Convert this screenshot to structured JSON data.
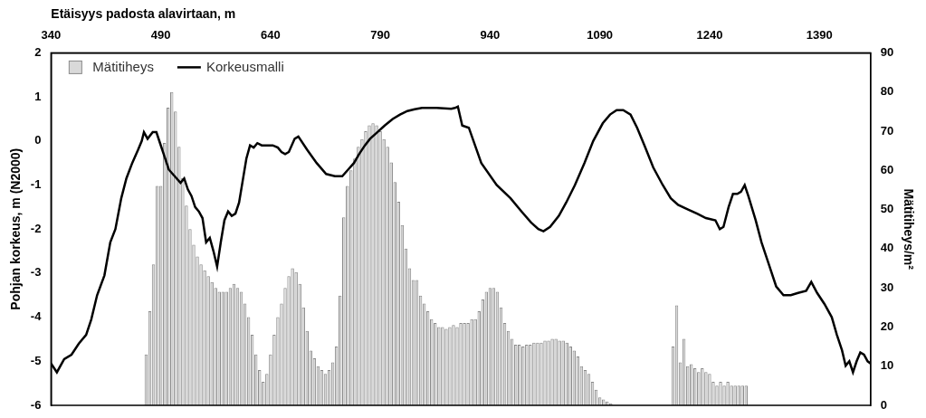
{
  "chart_data": {
    "type": "bar",
    "x_label": "Etäisyys padosta alavirtaan, m",
    "y_label": "Pohjan korkeus, m (N2000)",
    "y2_label": "Mätitiheys/m²",
    "xlim": [
      340,
      1460
    ],
    "xticks": [
      340,
      490,
      640,
      790,
      940,
      1090,
      1240,
      1390
    ],
    "ylim": [
      -6,
      2
    ],
    "yticks": [
      -6,
      -5,
      -4,
      -3,
      -2,
      -1,
      0,
      1,
      2
    ],
    "y2lim": [
      0,
      90
    ],
    "y2ticks": [
      0,
      10,
      20,
      30,
      40,
      50,
      60,
      70,
      80,
      90
    ],
    "grid": false,
    "legend": "upper left",
    "series": [
      {
        "name": "Mätitiheys",
        "type": "bar",
        "axis": "y2",
        "color": "#d9d9d9",
        "x": [
          470,
          475,
          480,
          485,
          490,
          495,
          500,
          505,
          510,
          515,
          520,
          525,
          530,
          535,
          540,
          545,
          550,
          555,
          560,
          565,
          570,
          575,
          580,
          585,
          590,
          595,
          600,
          605,
          610,
          615,
          620,
          625,
          630,
          635,
          640,
          645,
          650,
          655,
          660,
          665,
          670,
          675,
          680,
          685,
          690,
          695,
          700,
          705,
          710,
          715,
          720,
          725,
          730,
          735,
          740,
          745,
          750,
          755,
          760,
          765,
          770,
          775,
          780,
          785,
          790,
          795,
          800,
          805,
          810,
          815,
          820,
          825,
          830,
          835,
          840,
          845,
          850,
          855,
          860,
          865,
          870,
          875,
          880,
          885,
          890,
          895,
          900,
          905,
          910,
          915,
          920,
          925,
          930,
          935,
          940,
          945,
          950,
          955,
          960,
          965,
          970,
          975,
          980,
          985,
          990,
          995,
          1000,
          1005,
          1010,
          1015,
          1020,
          1025,
          1030,
          1035,
          1040,
          1045,
          1050,
          1055,
          1060,
          1065,
          1070,
          1075,
          1080,
          1085,
          1090,
          1095,
          1100,
          1105,
          1190,
          1195,
          1200,
          1205,
          1210,
          1215,
          1220,
          1225,
          1230,
          1235,
          1240,
          1245,
          1250,
          1255,
          1260,
          1265,
          1270,
          1275,
          1280,
          1285,
          1290
        ],
        "values": [
          13,
          24,
          36,
          56,
          56,
          67,
          76,
          80,
          75,
          66,
          58,
          51,
          45,
          41,
          38,
          36,
          34.5,
          33,
          31.5,
          30,
          29,
          29,
          29,
          30,
          31,
          30,
          29,
          26,
          22.5,
          18,
          13,
          9,
          6,
          8,
          13,
          18,
          22.5,
          26,
          30,
          33,
          35,
          34,
          31,
          25,
          19,
          14,
          12,
          10,
          9,
          8,
          9,
          11,
          15,
          28,
          48,
          56,
          60,
          63,
          66,
          68,
          70,
          71.5,
          72,
          71.5,
          70,
          68,
          66,
          62,
          57,
          52,
          46,
          40,
          35,
          32,
          32,
          28,
          26,
          24,
          22,
          21,
          20,
          20,
          19.5,
          20,
          20.5,
          20,
          21,
          21,
          21,
          22,
          22,
          24,
          27,
          29,
          30,
          30,
          29,
          25,
          21,
          19,
          17,
          15.5,
          15.5,
          15,
          15.5,
          15.5,
          16,
          16,
          16,
          16.5,
          16.5,
          17,
          17,
          16.5,
          16.5,
          16,
          15,
          14,
          12.5,
          10,
          9,
          8,
          6,
          4,
          2,
          1.5,
          1,
          0.5,
          15,
          25.5,
          11,
          17,
          10,
          10.5,
          9.5,
          8.5,
          9.5,
          8.5,
          8,
          6,
          5,
          6,
          5,
          6,
          5,
          5,
          5,
          5,
          5
        ]
      },
      {
        "name": "Korkeusmalli",
        "type": "line",
        "color": "#000000",
        "marker": "none",
        "x": [
          340,
          348,
          358,
          368,
          378,
          388,
          395,
          403,
          413,
          421,
          428,
          436,
          443,
          451,
          459,
          464,
          467,
          472,
          479,
          484,
          489,
          494,
          501,
          509,
          517,
          522,
          527,
          532,
          537,
          542,
          547,
          552,
          557,
          562,
          567,
          572,
          577,
          582,
          587,
          592,
          597,
          602,
          607,
          612,
          617,
          622,
          628,
          635,
          643,
          650,
          655,
          660,
          665,
          673,
          678,
          690,
          703,
          716,
          728,
          738,
          746,
          754,
          761,
          769,
          776,
          786,
          796,
          807,
          817,
          827,
          837,
          847,
          857,
          867,
          877,
          887,
          892,
          896,
          902,
          911,
          928,
          949,
          968,
          983,
          996,
          1006,
          1013,
          1022,
          1034,
          1044,
          1056,
          1069,
          1081,
          1094,
          1104,
          1113,
          1122,
          1132,
          1141,
          1151,
          1163,
          1176,
          1187,
          1197,
          1210,
          1223,
          1235,
          1248,
          1254,
          1259,
          1266,
          1272,
          1278,
          1283,
          1288,
          1293,
          1303,
          1311,
          1321,
          1331,
          1341,
          1351,
          1361,
          1372,
          1379,
          1387,
          1397,
          1407,
          1414,
          1421,
          1426,
          1431,
          1436,
          1441,
          1446,
          1451,
          1456,
          1460
        ],
        "values": [
          -5.05,
          -5.25,
          -4.95,
          -4.85,
          -4.6,
          -4.4,
          -4.05,
          -3.5,
          -3.05,
          -2.3,
          -2.0,
          -1.3,
          -0.85,
          -0.5,
          -0.2,
          0.0,
          0.2,
          0.05,
          0.2,
          0.2,
          -0.05,
          -0.3,
          -0.65,
          -0.8,
          -0.95,
          -0.85,
          -1.1,
          -1.25,
          -1.5,
          -1.6,
          -1.75,
          -2.3,
          -2.2,
          -2.5,
          -2.85,
          -2.3,
          -1.8,
          -1.6,
          -1.7,
          -1.65,
          -1.4,
          -0.9,
          -0.4,
          -0.1,
          -0.15,
          -0.05,
          -0.1,
          -0.1,
          -0.1,
          -0.15,
          -0.25,
          -0.3,
          -0.25,
          0.05,
          0.1,
          -0.2,
          -0.5,
          -0.75,
          -0.8,
          -0.8,
          -0.65,
          -0.5,
          -0.3,
          -0.1,
          0.05,
          0.2,
          0.35,
          0.5,
          0.6,
          0.68,
          0.72,
          0.75,
          0.75,
          0.75,
          0.74,
          0.73,
          0.75,
          0.78,
          0.35,
          0.3,
          -0.5,
          -1.0,
          -1.3,
          -1.6,
          -1.85,
          -2.0,
          -2.05,
          -1.95,
          -1.7,
          -1.4,
          -1.0,
          -0.5,
          0.0,
          0.4,
          0.6,
          0.7,
          0.7,
          0.6,
          0.3,
          -0.1,
          -0.6,
          -1.0,
          -1.3,
          -1.45,
          -1.55,
          -1.65,
          -1.75,
          -1.8,
          -2.0,
          -1.95,
          -1.5,
          -1.2,
          -1.2,
          -1.15,
          -1.0,
          -1.25,
          -1.8,
          -2.3,
          -2.8,
          -3.3,
          -3.5,
          -3.5,
          -3.45,
          -3.4,
          -3.2,
          -3.45,
          -3.7,
          -4.0,
          -4.4,
          -4.75,
          -5.1,
          -5.0,
          -5.25,
          -5.0,
          -4.8,
          -4.85,
          -5.0,
          -5.05
        ]
      }
    ]
  }
}
